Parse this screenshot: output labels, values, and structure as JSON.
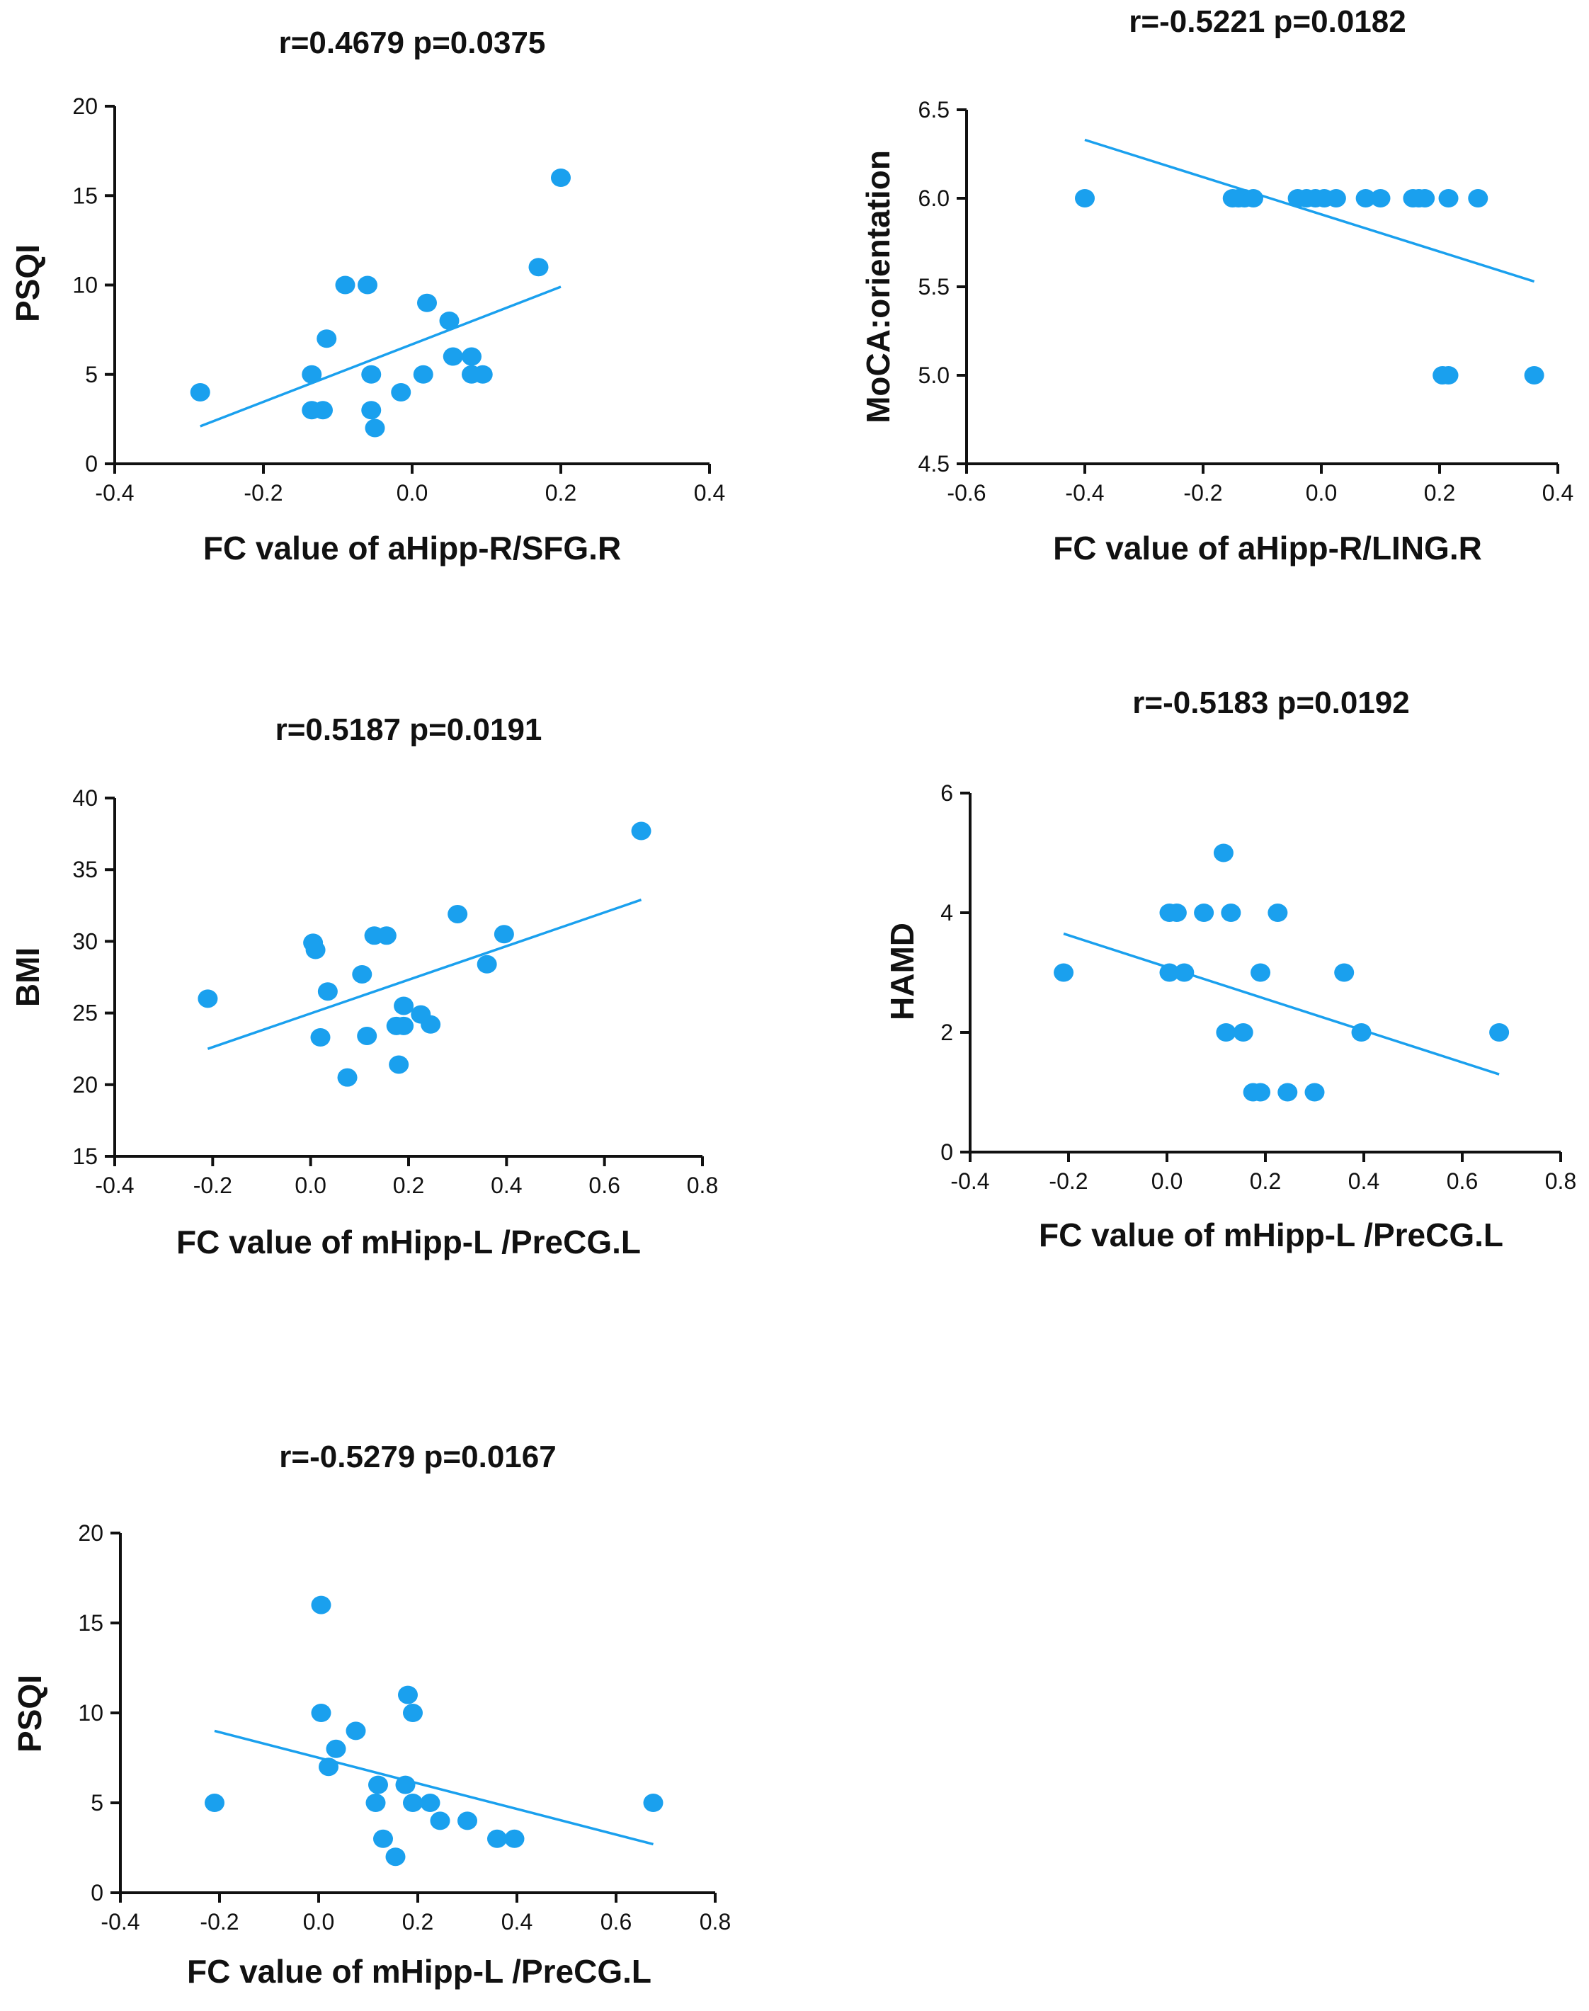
{
  "colors": {
    "point": "#1aa0ee",
    "line": "#1aa0ee",
    "axis": "#111111"
  },
  "chart_data": [
    {
      "id": "p1",
      "type": "scatter",
      "title": "r=0.4679  p=0.0375",
      "xlabel": "FC value of aHipp-R/SFG.R",
      "ylabel": "PSQI",
      "xlim": [
        -0.4,
        0.4
      ],
      "ylim": [
        0,
        20
      ],
      "xticks": [
        -0.4,
        -0.2,
        0.0,
        0.2,
        0.4
      ],
      "xtick_labels": [
        "-0.4",
        "-0.2",
        "0.0",
        "0.2",
        "0.4"
      ],
      "yticks": [
        0,
        5,
        10,
        15,
        20
      ],
      "ytick_labels": [
        "0",
        "5",
        "10",
        "15",
        "20"
      ],
      "points": [
        [
          -0.285,
          4
        ],
        [
          -0.135,
          5
        ],
        [
          -0.135,
          3
        ],
        [
          -0.12,
          3
        ],
        [
          -0.115,
          7
        ],
        [
          -0.09,
          10
        ],
        [
          -0.06,
          10
        ],
        [
          -0.055,
          5
        ],
        [
          -0.055,
          3
        ],
        [
          -0.05,
          2
        ],
        [
          -0.015,
          4
        ],
        [
          0.015,
          5
        ],
        [
          0.02,
          9
        ],
        [
          0.05,
          8
        ],
        [
          0.055,
          6
        ],
        [
          0.08,
          6
        ],
        [
          0.08,
          5
        ],
        [
          0.095,
          5
        ],
        [
          0.17,
          11
        ],
        [
          0.2,
          16
        ]
      ],
      "fit_line": [
        [
          -0.285,
          2.1
        ],
        [
          0.2,
          9.9
        ]
      ]
    },
    {
      "id": "p2",
      "type": "scatter",
      "title": "r=-0.5221 p=0.0182",
      "xlabel": "FC value of aHipp-R/LING.R",
      "ylabel": "MoCA:orientation",
      "xlim": [
        -0.6,
        0.4
      ],
      "ylim": [
        4.5,
        6.5
      ],
      "xticks": [
        -0.6,
        -0.4,
        -0.2,
        0.0,
        0.2,
        0.4
      ],
      "xtick_labels": [
        "-0.6",
        "-0.4",
        "-0.2",
        "0.0",
        "0.2",
        "0.4"
      ],
      "yticks": [
        4.5,
        5.0,
        5.5,
        6.0,
        6.5
      ],
      "ytick_labels": [
        "4.5",
        "5.0",
        "5.5",
        "6.0",
        "6.5"
      ],
      "points": [
        [
          -0.4,
          6
        ],
        [
          -0.15,
          6
        ],
        [
          -0.14,
          6
        ],
        [
          -0.13,
          6
        ],
        [
          -0.115,
          6
        ],
        [
          -0.04,
          6
        ],
        [
          -0.025,
          6
        ],
        [
          -0.01,
          6
        ],
        [
          0.005,
          6
        ],
        [
          0.025,
          6
        ],
        [
          0.075,
          6
        ],
        [
          0.1,
          6
        ],
        [
          0.155,
          6
        ],
        [
          0.165,
          6
        ],
        [
          0.175,
          6
        ],
        [
          0.215,
          6
        ],
        [
          0.265,
          6
        ],
        [
          0.205,
          5
        ],
        [
          0.215,
          5
        ],
        [
          0.36,
          5
        ]
      ],
      "fit_line": [
        [
          -0.4,
          6.33
        ],
        [
          0.36,
          5.53
        ]
      ]
    },
    {
      "id": "p3",
      "type": "scatter",
      "title": "r=0.5187 p=0.0191",
      "xlabel": "FC value of mHipp-L /PreCG.L",
      "ylabel": "BMI",
      "xlim": [
        -0.4,
        0.8
      ],
      "ylim": [
        15,
        40
      ],
      "xticks": [
        -0.4,
        -0.2,
        0.0,
        0.2,
        0.4,
        0.6,
        0.8
      ],
      "xtick_labels": [
        "-0.4",
        "-0.2",
        "0.0",
        "0.2",
        "0.4",
        "0.6",
        "0.8"
      ],
      "yticks": [
        15,
        20,
        25,
        30,
        35,
        40
      ],
      "ytick_labels": [
        "15",
        "20",
        "25",
        "30",
        "35",
        "40"
      ],
      "points": [
        [
          -0.21,
          26
        ],
        [
          0.005,
          29.9
        ],
        [
          0.01,
          29.4
        ],
        [
          0.02,
          23.3
        ],
        [
          0.035,
          26.5
        ],
        [
          0.075,
          20.5
        ],
        [
          0.105,
          27.7
        ],
        [
          0.115,
          23.4
        ],
        [
          0.13,
          30.4
        ],
        [
          0.155,
          30.4
        ],
        [
          0.175,
          24.1
        ],
        [
          0.18,
          21.4
        ],
        [
          0.19,
          24.1
        ],
        [
          0.19,
          25.5
        ],
        [
          0.225,
          24.9
        ],
        [
          0.245,
          24.2
        ],
        [
          0.3,
          31.9
        ],
        [
          0.36,
          28.4
        ],
        [
          0.395,
          30.5
        ],
        [
          0.675,
          37.7
        ]
      ],
      "fit_line": [
        [
          -0.21,
          22.5
        ],
        [
          0.675,
          32.9
        ]
      ]
    },
    {
      "id": "p4",
      "type": "scatter",
      "title": "r=-0.5183 p=0.0192",
      "xlabel": "FC value of mHipp-L /PreCG.L",
      "ylabel": "HAMD",
      "xlim": [
        -0.4,
        0.8
      ],
      "ylim": [
        0,
        6
      ],
      "xticks": [
        -0.4,
        -0.2,
        0.0,
        0.2,
        0.4,
        0.6,
        0.8
      ],
      "xtick_labels": [
        "-0.4",
        "-0.2",
        "0.0",
        "0.2",
        "0.4",
        "0.6",
        "0.8"
      ],
      "yticks": [
        0,
        2,
        4,
        6
      ],
      "ytick_labels": [
        "0",
        "2",
        "4",
        "6"
      ],
      "points": [
        [
          -0.21,
          3
        ],
        [
          0.005,
          3
        ],
        [
          0.005,
          4
        ],
        [
          0.02,
          4
        ],
        [
          0.035,
          3
        ],
        [
          0.075,
          4
        ],
        [
          0.115,
          5
        ],
        [
          0.12,
          2
        ],
        [
          0.13,
          4
        ],
        [
          0.155,
          2
        ],
        [
          0.175,
          1
        ],
        [
          0.19,
          1
        ],
        [
          0.19,
          3
        ],
        [
          0.225,
          4
        ],
        [
          0.245,
          1
        ],
        [
          0.3,
          1
        ],
        [
          0.36,
          3
        ],
        [
          0.395,
          2
        ],
        [
          0.675,
          2
        ]
      ],
      "fit_line": [
        [
          -0.21,
          3.65
        ],
        [
          0.675,
          1.3
        ]
      ]
    },
    {
      "id": "p5",
      "type": "scatter",
      "title": "r=-0.5279 p=0.0167",
      "xlabel": "FC value of mHipp-L /PreCG.L",
      "ylabel": "PSQI",
      "xlim": [
        -0.4,
        0.8
      ],
      "ylim": [
        0,
        20
      ],
      "xticks": [
        -0.4,
        -0.2,
        0.0,
        0.2,
        0.4,
        0.6,
        0.8
      ],
      "xtick_labels": [
        "-0.4",
        "-0.2",
        "0.0",
        "0.2",
        "0.4",
        "0.6",
        "0.8"
      ],
      "yticks": [
        0,
        5,
        10,
        15,
        20
      ],
      "ytick_labels": [
        "0",
        "5",
        "10",
        "15",
        "20"
      ],
      "points": [
        [
          -0.21,
          5
        ],
        [
          0.005,
          16
        ],
        [
          0.005,
          10
        ],
        [
          0.02,
          7
        ],
        [
          0.035,
          8
        ],
        [
          0.075,
          9
        ],
        [
          0.115,
          5
        ],
        [
          0.12,
          6
        ],
        [
          0.13,
          3
        ],
        [
          0.155,
          2
        ],
        [
          0.175,
          6
        ],
        [
          0.18,
          11
        ],
        [
          0.19,
          10
        ],
        [
          0.19,
          5
        ],
        [
          0.225,
          5
        ],
        [
          0.245,
          4
        ],
        [
          0.3,
          4
        ],
        [
          0.36,
          3
        ],
        [
          0.395,
          3
        ],
        [
          0.675,
          5
        ]
      ],
      "fit_line": [
        [
          -0.21,
          9.0
        ],
        [
          0.675,
          2.7
        ]
      ]
    }
  ]
}
